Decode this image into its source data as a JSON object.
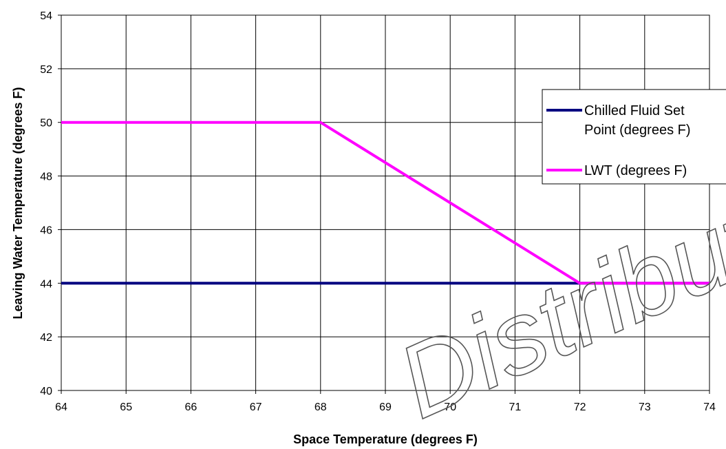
{
  "chart_data": {
    "type": "line",
    "title": "",
    "xlabel": "Space Temperature (degrees F)",
    "ylabel": "Leaving Water Temperature (degrees F)",
    "xlim": [
      64,
      74
    ],
    "ylim": [
      40,
      54
    ],
    "x_ticks": [
      64,
      65,
      66,
      67,
      68,
      69,
      70,
      71,
      72,
      73,
      74
    ],
    "y_ticks": [
      40,
      42,
      44,
      46,
      48,
      50,
      52,
      54
    ],
    "grid": true,
    "legend_position": "right",
    "series": [
      {
        "name": "Chilled Fluid Set Point (degrees F)",
        "name_lines": [
          "Chilled Fluid Set",
          "Point (degrees F)"
        ],
        "color": "#000080",
        "x": [
          64,
          72,
          74
        ],
        "y": [
          44,
          44,
          44
        ]
      },
      {
        "name": "LWT (degrees F)",
        "name_lines": [
          "LWT (degrees F)"
        ],
        "color": "#ff00ff",
        "x": [
          64,
          68,
          72,
          74
        ],
        "y": [
          50,
          50,
          44,
          44
        ]
      }
    ]
  },
  "watermark": {
    "text": "Distribution"
  }
}
